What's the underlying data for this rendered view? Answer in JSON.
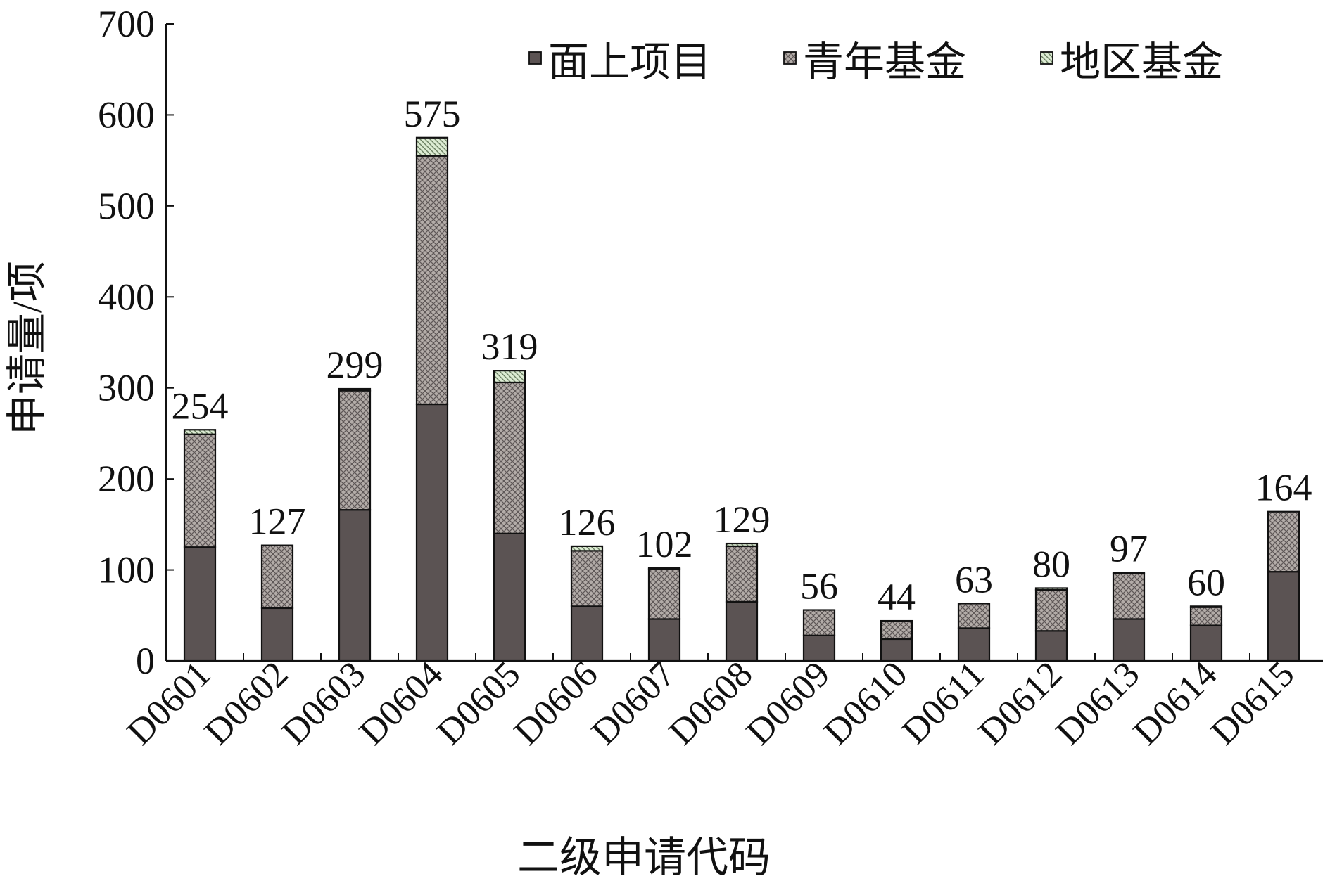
{
  "chart_data": {
    "type": "bar",
    "stacked": true,
    "title": "",
    "xlabel": "二级申请代码",
    "ylabel": "申请量/项",
    "ylim": [
      0,
      700
    ],
    "yticks": [
      "0",
      "100",
      "200",
      "300",
      "400",
      "500",
      "600",
      "700"
    ],
    "categories": [
      "D0601",
      "D0602",
      "D0603",
      "D0604",
      "D0605",
      "D0606",
      "D0607",
      "D0608",
      "D0609",
      "D0610",
      "D0611",
      "D0612",
      "D0613",
      "D0614",
      "D0615"
    ],
    "series": [
      {
        "name": "面上项目",
        "values": [
          125,
          58,
          166,
          282,
          140,
          60,
          46,
          65,
          28,
          24,
          36,
          33,
          46,
          39,
          98
        ],
        "color": "#5b5353",
        "pattern": "solid"
      },
      {
        "name": "青年基金",
        "values": [
          124,
          69,
          131,
          273,
          166,
          61,
          55,
          61,
          28,
          20,
          27,
          45,
          50,
          20,
          66
        ],
        "color": "#a8a29e",
        "pattern": "crosshatch"
      },
      {
        "name": "地区基金",
        "values": [
          5,
          0,
          2,
          20,
          13,
          5,
          1,
          3,
          0,
          0,
          0,
          2,
          1,
          1,
          0
        ],
        "color": "#cfe3c4",
        "pattern": "diagonal"
      }
    ],
    "totals": [
      "254",
      "127",
      "299",
      "575",
      "319",
      "126",
      "102",
      "129",
      "56",
      "44",
      "63",
      "80",
      "97",
      "60",
      "164"
    ],
    "grid": false,
    "legend_position": "top-right"
  }
}
